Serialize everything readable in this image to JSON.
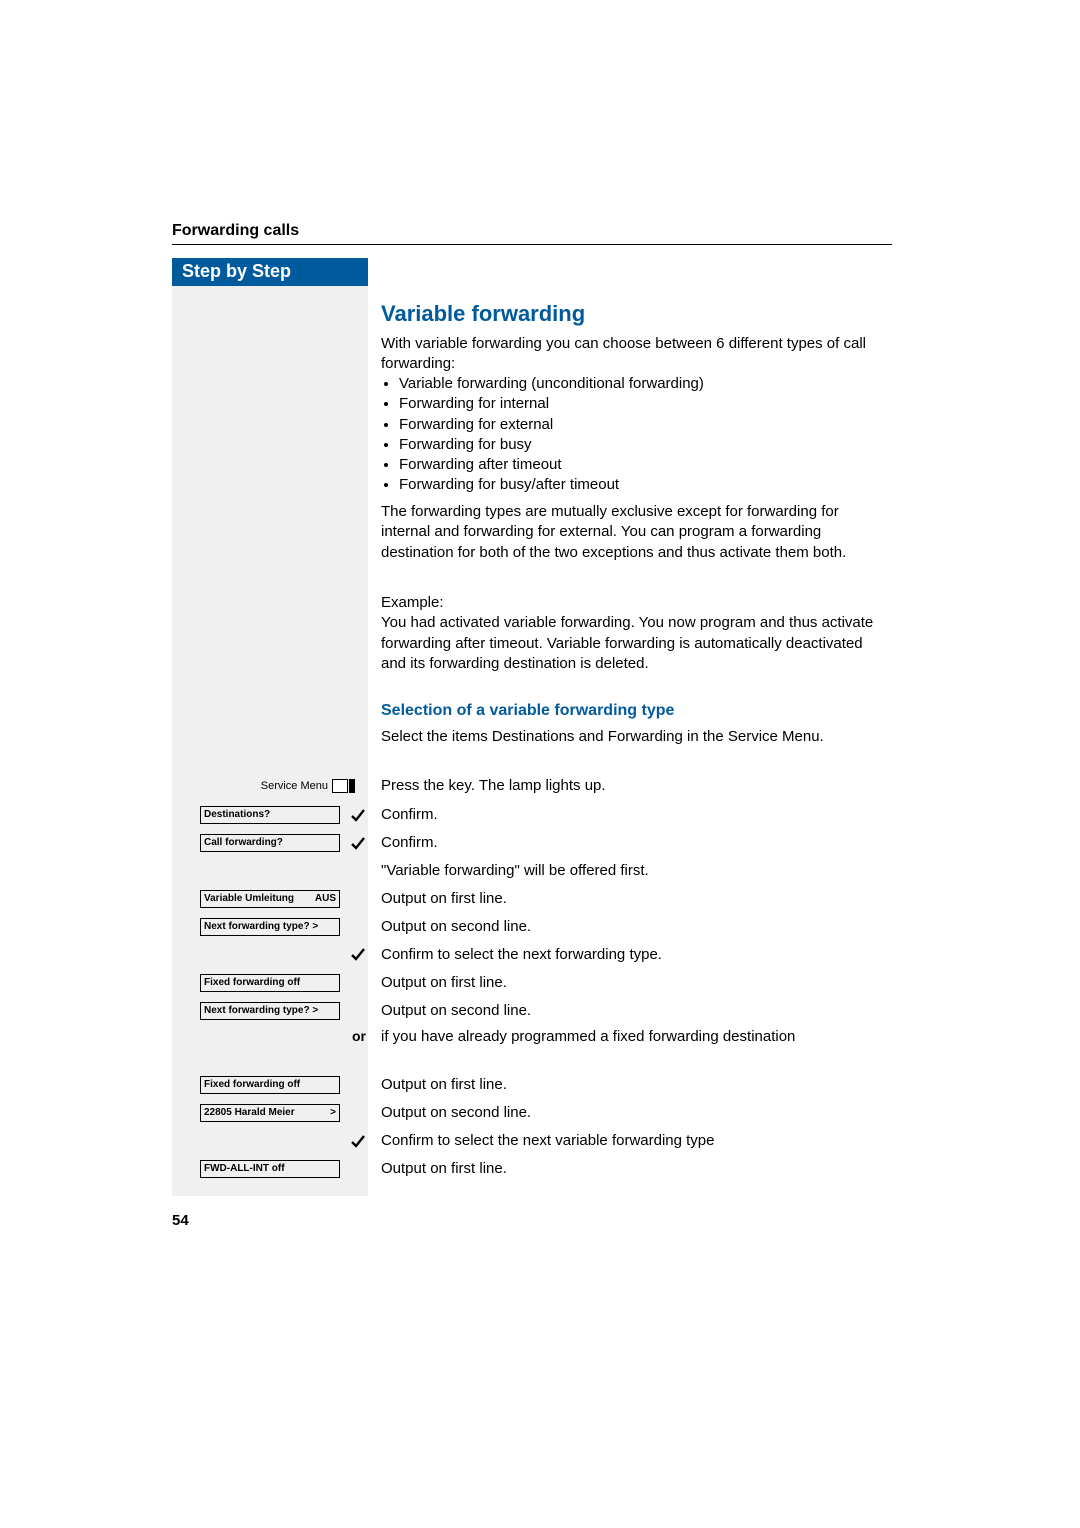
{
  "colors": {
    "brand": "#005a9c",
    "sidebar_bg": "#f0f0f0",
    "text": "#000000",
    "page_bg": "#ffffff",
    "white": "#ffffff"
  },
  "header": {
    "section": "Forwarding calls",
    "rule_color": "#000000"
  },
  "sidebar": {
    "title": "Step by Step"
  },
  "title": "Variable forwarding",
  "intro": {
    "lead": "With variable forwarding you can choose between 6 different types of call forwarding:",
    "bullets": [
      "Variable forwarding (unconditional forwarding)",
      "Forwarding for internal",
      "Forwarding for external",
      "Forwarding for busy",
      "Forwarding after timeout",
      "Forwarding for busy/after timeout"
    ],
    "para2": "The forwarding types are mutually exclusive except for forwarding for internal and forwarding for external. You can program a forwarding destination for both of the two exceptions and thus activate them both.",
    "example_label": "Example:",
    "example_body": "You had activated variable forwarding. You now program and thus activate forwarding after timeout. Variable forwarding is automatically deactivated and its forwarding destination is deleted."
  },
  "subhead": "Selection of a variable forwarding type",
  "sub_lead": "Select the items Destinations and Forwarding in the Service Menu.",
  "rows": {
    "r1_label": "Service Menu",
    "r1_desc": "Press the key. The lamp lights up.",
    "r2_box": "Destinations?",
    "r2_desc": "Confirm.",
    "r3_box": "Call forwarding?",
    "r3_desc": "Confirm.",
    "r4_desc": "\"Variable forwarding\" will be offered first.",
    "r5_box_left": "Variable Umleitung",
    "r5_box_right": "AUS",
    "r5_desc": "Output on first line.",
    "r6_box": "Next forwarding type?  >",
    "r6_desc": "Output on second line.",
    "r7_desc": "Confirm to select the next forwarding type.",
    "r8_box": "Fixed forwarding off",
    "r8_desc": "Output on first line.",
    "r9_box": "Next forwarding type?  >",
    "r9_desc": "Output on second line.",
    "or": "or",
    "r10_desc": "if you have already programmed a fixed forwarding destination",
    "r11_box": "Fixed forwarding off",
    "r11_desc": "Output on first line.",
    "r12_box_left": "22805 Harald Meier",
    "r12_box_right": ">",
    "r12_desc": "Output on second line.",
    "r13_desc": "Confirm to select the next variable forwarding type",
    "r14_box": "FWD-ALL-INT off",
    "r14_desc": "Output on first line."
  },
  "page_number": "54"
}
